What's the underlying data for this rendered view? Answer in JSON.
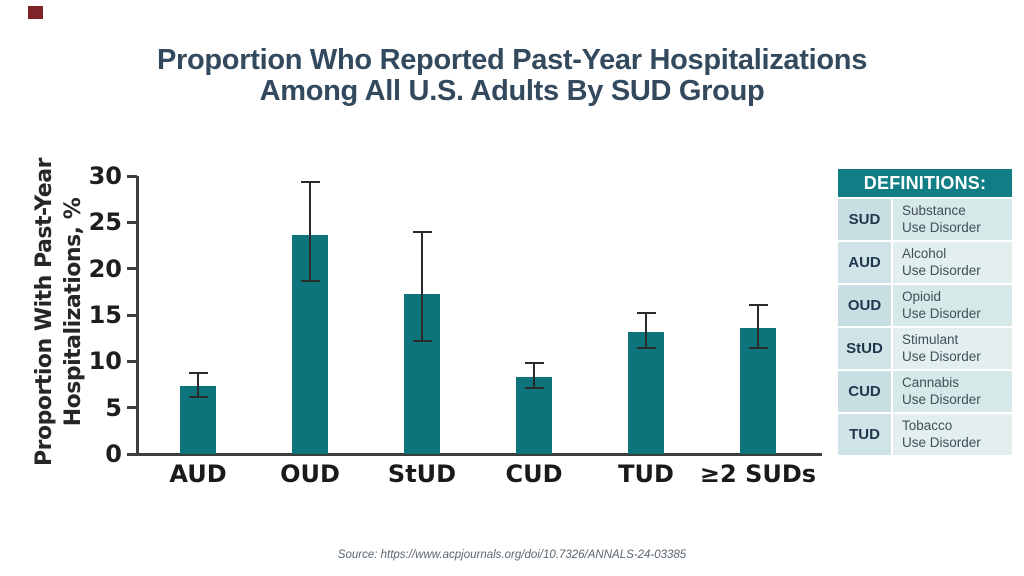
{
  "slide": {
    "title_line1": "Proportion Who Reported Past-Year Hospitalizations",
    "title_line2": "Among All U.S. Adults By SUD Group",
    "source": "Source: https://www.acpjournals.org/doi/10.7326/ANNALS-24-03385",
    "accent_square_color": "#7e2328",
    "title_color": "#33495e"
  },
  "chart_data": {
    "type": "bar",
    "title": "",
    "ylabel_line1": "Proportion With Past-Year",
    "ylabel_line2": "Hospitalizations, %",
    "xlabel": "",
    "categories": [
      "AUD",
      "OUD",
      "StUD",
      "CUD",
      "TUD",
      "≥2 SUDs"
    ],
    "values": [
      7.3,
      23.6,
      17.3,
      8.3,
      13.2,
      13.6
    ],
    "ci_low": [
      6.2,
      18.7,
      12.2,
      7.1,
      11.4,
      11.4
    ],
    "ci_high": [
      8.7,
      29.4,
      24.0,
      9.8,
      15.2,
      16.1
    ],
    "yticks": [
      0,
      5,
      10,
      15,
      20,
      25,
      30
    ],
    "ylim": [
      0,
      30
    ],
    "grid": false,
    "legend": "none",
    "bar_color": "#0e747c",
    "error_bar_color": "#2b2b2b"
  },
  "definitions_table": {
    "header": "DEFINITIONS:",
    "header_bg": "#117d84",
    "rows": [
      {
        "abbr": "SUD",
        "line1": "Substance",
        "line2": "Use Disorder"
      },
      {
        "abbr": "AUD",
        "line1": "Alcohol",
        "line2": "Use Disorder"
      },
      {
        "abbr": "OUD",
        "line1": "Opioid",
        "line2": "Use Disorder"
      },
      {
        "abbr": "StUD",
        "line1": "Stimulant",
        "line2": "Use Disorder"
      },
      {
        "abbr": "CUD",
        "line1": "Cannabis",
        "line2": "Use Disorder"
      },
      {
        "abbr": "TUD",
        "line1": "Tobacco",
        "line2": "Use Disorder"
      }
    ],
    "row_colors": {
      "abbr_odd": "#c7dee3",
      "text_odd": "#d7e8e8",
      "abbr_even": "#d0e4e7",
      "text_even": "#e2efee"
    }
  }
}
